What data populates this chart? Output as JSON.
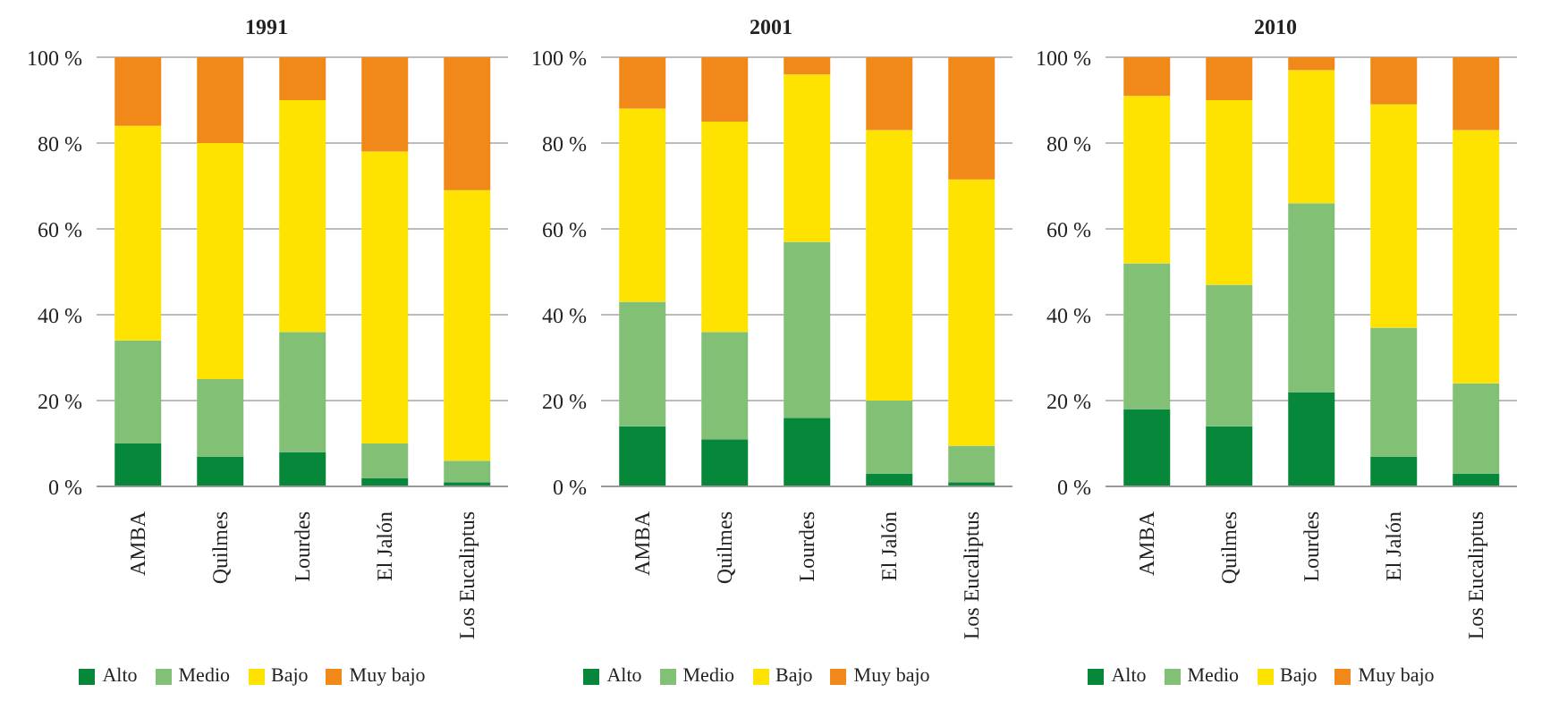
{
  "chart_data": [
    {
      "type": "bar",
      "title": "1991",
      "stacked": true,
      "categories": [
        "AMBA",
        "Quilmes",
        "Lourdes",
        "El Jalón",
        "Los Eucaliptus"
      ],
      "ylim": [
        0,
        100
      ],
      "yticks": [
        {
          "value": 0,
          "label": "0 %"
        },
        {
          "value": 20,
          "label": "20 %"
        },
        {
          "value": 40,
          "label": "40 %"
        },
        {
          "value": 60,
          "label": "60 %"
        },
        {
          "value": 80,
          "label": "80 %"
        },
        {
          "value": 100,
          "label": "100 %"
        }
      ],
      "grid": "y",
      "legend": "bottom",
      "series": [
        {
          "name": "Alto",
          "color": "#07873a",
          "values": [
            10,
            7,
            8,
            2,
            1
          ]
        },
        {
          "name": "Medio",
          "color": "#82c075",
          "values": [
            24,
            18,
            28,
            8,
            5
          ]
        },
        {
          "name": "Bajo",
          "color": "#fee300",
          "values": [
            50,
            55,
            54,
            68,
            63
          ]
        },
        {
          "name": "Muy bajo",
          "color": "#f08919",
          "values": [
            16,
            20,
            10,
            22,
            31
          ]
        }
      ]
    },
    {
      "type": "bar",
      "title": "2001",
      "stacked": true,
      "categories": [
        "AMBA",
        "Quilmes",
        "Lourdes",
        "El Jalón",
        "Los Eucaliptus"
      ],
      "ylim": [
        0,
        100
      ],
      "yticks": [
        {
          "value": 0,
          "label": "0 %"
        },
        {
          "value": 20,
          "label": "20 %"
        },
        {
          "value": 40,
          "label": "40 %"
        },
        {
          "value": 60,
          "label": "60 %"
        },
        {
          "value": 80,
          "label": "80 %"
        },
        {
          "value": 100,
          "label": "100 %"
        }
      ],
      "grid": "y",
      "legend": "bottom",
      "series": [
        {
          "name": "Alto",
          "color": "#07873a",
          "values": [
            14,
            11,
            16,
            3,
            1
          ]
        },
        {
          "name": "Medio",
          "color": "#82c075",
          "values": [
            29,
            25,
            41,
            17,
            8.5
          ]
        },
        {
          "name": "Bajo",
          "color": "#fee300",
          "values": [
            45,
            49,
            39,
            63,
            62
          ]
        },
        {
          "name": "Muy bajo",
          "color": "#f08919",
          "values": [
            12,
            15,
            4,
            17,
            28.5
          ]
        }
      ]
    },
    {
      "type": "bar",
      "title": "2010",
      "stacked": true,
      "categories": [
        "AMBA",
        "Quilmes",
        "Lourdes",
        "El Jalón",
        "Los Eucaliptus"
      ],
      "ylim": [
        0,
        100
      ],
      "yticks": [
        {
          "value": 0,
          "label": "0 %"
        },
        {
          "value": 20,
          "label": "20 %"
        },
        {
          "value": 40,
          "label": "40 %"
        },
        {
          "value": 60,
          "label": "60 %"
        },
        {
          "value": 80,
          "label": "80 %"
        },
        {
          "value": 100,
          "label": "100 %"
        }
      ],
      "grid": "y",
      "legend": "bottom",
      "series": [
        {
          "name": "Alto",
          "color": "#07873a",
          "values": [
            18,
            14,
            22,
            7,
            3
          ]
        },
        {
          "name": "Medio",
          "color": "#82c075",
          "values": [
            34,
            33,
            44,
            30,
            21
          ]
        },
        {
          "name": "Bajo",
          "color": "#fee300",
          "values": [
            39,
            43,
            31,
            52,
            59
          ]
        },
        {
          "name": "Muy bajo",
          "color": "#f08919",
          "values": [
            9,
            10,
            3,
            11,
            17
          ]
        }
      ]
    }
  ]
}
